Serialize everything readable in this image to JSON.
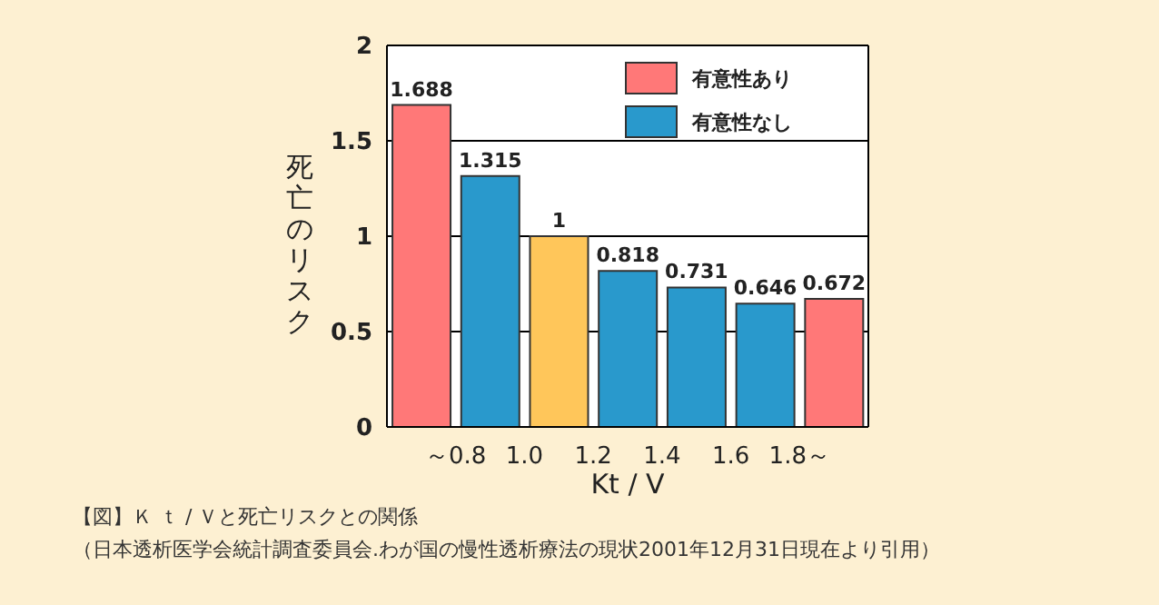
{
  "chart_data": {
    "type": "bar",
    "xlabel": "Kt / V",
    "ylabel": "死亡のリスク",
    "categories": [
      "～0.8",
      "1.0",
      "1.2",
      "1.4",
      "1.6",
      "1.8～",
      null
    ],
    "stacked": true,
    "series": [
      {
        "name": "有意性あり",
        "color": "#ff7878",
        "values": [
          1.688,
          null,
          null,
          null,
          null,
          null,
          0.672
        ]
      },
      {
        "name": "有意性なし",
        "color": "#2999cc",
        "values": [
          null,
          1.315,
          null,
          0.818,
          0.731,
          0.646,
          null
        ]
      },
      {
        "color": "#ffc65a",
        "values": [
          null,
          null,
          1,
          null,
          null,
          null,
          null
        ]
      }
    ],
    "ylim": [
      0,
      2
    ],
    "yticks": [
      0,
      0.5,
      1,
      1.5,
      2
    ],
    "grid": "y",
    "legend": "top right",
    "data_labels": true,
    "annotations": [
      "【図】Ｋ ｔ / Ｖと死亡リスクとの関係",
      "（日本透析医学会統計調査委員会.わが国の慢性透析療法の現状2001年12月31日現在より引用）"
    ]
  }
}
